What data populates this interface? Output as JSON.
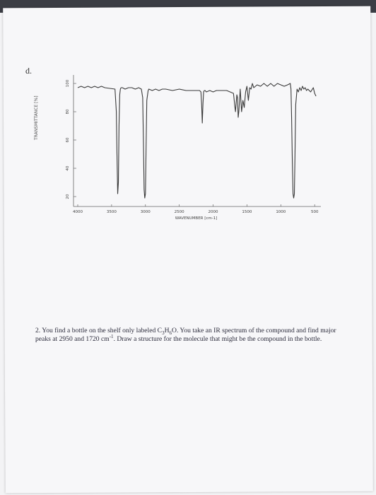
{
  "question_letter": "d.",
  "chart_data": {
    "type": "line",
    "xlabel": "WAVENUMBER [cm-1]",
    "ylabel": "TRANSMITTANCE [%]",
    "x_ticks": [
      4000,
      3500,
      3000,
      2500,
      2000,
      1500,
      1000,
      500
    ],
    "x_tick_labels": [
      "4000",
      "3500",
      "3000",
      "2500",
      "2000",
      "1500",
      "1000",
      "500"
    ],
    "y_ticks": [
      20,
      40,
      60,
      80,
      100
    ],
    "y_tick_labels": [
      "20",
      "40",
      "60",
      "80",
      "100"
    ],
    "xlim": [
      4000,
      450
    ],
    "ylim": [
      15,
      105
    ],
    "grid": false,
    "series": [
      {
        "color": "#3a3a3a",
        "x": [
          4000,
          3950,
          3900,
          3850,
          3800,
          3750,
          3700,
          3650,
          3600,
          3450,
          3430,
          3420,
          3410,
          3400,
          3390,
          3380,
          3370,
          3360,
          3340,
          3300,
          3250,
          3200,
          3150,
          3100,
          3060,
          3040,
          3030,
          3020,
          3010,
          3000,
          2990,
          2980,
          2960,
          2950,
          2900,
          2850,
          2800,
          2750,
          2700,
          2600,
          2500,
          2400,
          2300,
          2200,
          2180,
          2170,
          2160,
          2150,
          2140,
          2130,
          2120,
          2100,
          2050,
          2000,
          1950,
          1900,
          1850,
          1800,
          1750,
          1700,
          1690,
          1680,
          1670,
          1660,
          1650,
          1640,
          1630,
          1620,
          1610,
          1600,
          1580,
          1560,
          1540,
          1520,
          1500,
          1480,
          1460,
          1440,
          1420,
          1400,
          1350,
          1300,
          1250,
          1200,
          1150,
          1100,
          1050,
          1000,
          950,
          900,
          860,
          850,
          840,
          830,
          820,
          810,
          800,
          790,
          780,
          760,
          740,
          720,
          700,
          680,
          660,
          640,
          620,
          600,
          560,
          520,
          500,
          480
        ],
        "y": [
          97,
          98,
          97,
          98,
          97,
          98,
          97,
          98,
          97,
          96,
          80,
          50,
          22,
          30,
          70,
          92,
          96,
          97,
          97,
          96,
          97,
          97,
          96,
          97,
          96,
          90,
          60,
          25,
          19,
          22,
          55,
          88,
          95,
          96,
          95,
          96,
          95,
          96,
          96,
          95,
          96,
          95,
          95,
          95,
          94,
          85,
          72,
          86,
          94,
          95,
          95,
          94,
          95,
          94,
          95,
          95,
          95,
          95,
          94,
          93,
          89,
          84,
          80,
          86,
          92,
          90,
          76,
          80,
          88,
          96,
          80,
          88,
          83,
          94,
          98,
          88,
          97,
          96,
          100,
          97,
          99,
          98,
          100,
          98,
          100,
          98,
          100,
          99,
          98,
          99,
          100,
          96,
          75,
          45,
          22,
          19,
          22,
          50,
          85,
          96,
          94,
          97,
          95,
          98,
          96,
          97,
          95,
          96,
          94,
          97,
          93,
          91
        ]
      }
    ]
  },
  "question": {
    "number": "2.",
    "line1_a": "You find a bottle on the shelf only labeled C",
    "sub1": "3",
    "mid1": "H",
    "sub2": "6",
    "line1_b": "O. You take an IR spectrum of the compound and find major peaks at 2950 and 1720 cm",
    "sup1": "-1",
    "line1_c": ". Draw a structure for the molecule that might be the compound in the bottle."
  }
}
